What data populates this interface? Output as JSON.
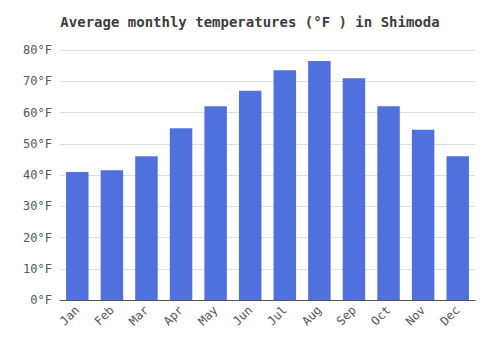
{
  "chart_data": {
    "type": "bar",
    "title": "Average monthly temperatures (°F ) in Shimoda",
    "categories": [
      "Jan",
      "Feb",
      "Mar",
      "Apr",
      "May",
      "Jun",
      "Jul",
      "Aug",
      "Sep",
      "Oct",
      "Nov",
      "Dec"
    ],
    "values": [
      41,
      41.5,
      46,
      55,
      62,
      67,
      73.5,
      76.5,
      71,
      62,
      54.5,
      46
    ],
    "ylim": [
      0,
      80
    ],
    "yticks": [
      {
        "value": 0,
        "label": "0°F"
      },
      {
        "value": 10,
        "label": "10°F"
      },
      {
        "value": 20,
        "label": "20°F"
      },
      {
        "value": 30,
        "label": "30°F"
      },
      {
        "value": 40,
        "label": "40°F"
      },
      {
        "value": 50,
        "label": "50°F"
      },
      {
        "value": 60,
        "label": "60°F"
      },
      {
        "value": 70,
        "label": "70°F"
      },
      {
        "value": 80,
        "label": "80°F"
      }
    ],
    "grid": true
  }
}
